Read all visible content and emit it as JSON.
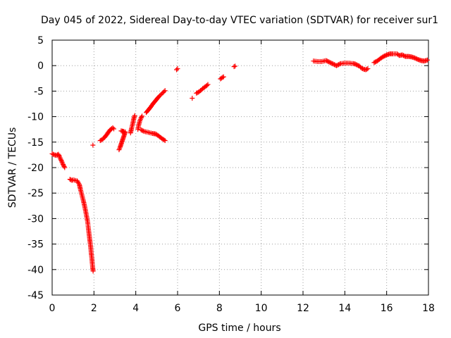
{
  "chart_data": {
    "type": "scatter",
    "title": "Day 045 of 2022, Sidereal Day-to-day VTEC variation (SDTVAR) for receiver sur1",
    "xlabel": "GPS time / hours",
    "ylabel": "SDTVAR / TECUs",
    "xlim": [
      0,
      18
    ],
    "ylim": [
      -45,
      5
    ],
    "x_ticks": [
      0,
      2,
      4,
      6,
      8,
      10,
      12,
      14,
      16,
      18
    ],
    "y_ticks": [
      5,
      0,
      -5,
      -10,
      -15,
      -20,
      -25,
      -30,
      -35,
      -40,
      -45
    ],
    "grid": true,
    "marker": "+",
    "series_color": "#ff0000",
    "segments": [
      {
        "points": [
          [
            0.0,
            -17.3
          ],
          [
            0.1,
            -17.5
          ],
          [
            0.2,
            -17.6
          ],
          [
            0.3,
            -17.4
          ],
          [
            0.35,
            -17.8
          ],
          [
            0.4,
            -18.3
          ],
          [
            0.45,
            -18.7
          ],
          [
            0.5,
            -19.2
          ],
          [
            0.55,
            -19.6
          ],
          [
            0.6,
            -20.0
          ]
        ]
      },
      {
        "points": [
          [
            0.85,
            -22.3
          ],
          [
            0.95,
            -22.5
          ],
          [
            1.0,
            -22.4
          ],
          [
            1.2,
            -22.6
          ],
          [
            1.3,
            -23.3
          ],
          [
            1.35,
            -24.2
          ],
          [
            1.4,
            -25.0
          ],
          [
            1.45,
            -25.8
          ],
          [
            1.5,
            -26.6
          ],
          [
            1.55,
            -27.5
          ],
          [
            1.6,
            -28.5
          ],
          [
            1.65,
            -29.6
          ],
          [
            1.7,
            -30.7
          ],
          [
            1.73,
            -31.8
          ],
          [
            1.76,
            -32.8
          ],
          [
            1.79,
            -33.8
          ],
          [
            1.82,
            -34.8
          ],
          [
            1.85,
            -35.8
          ],
          [
            1.87,
            -36.8
          ],
          [
            1.9,
            -37.8
          ],
          [
            1.92,
            -38.8
          ],
          [
            1.94,
            -39.6
          ],
          [
            1.96,
            -40.3
          ]
        ]
      },
      {
        "points": [
          [
            1.95,
            -15.6
          ]
        ]
      },
      {
        "points": [
          [
            2.3,
            -14.7
          ],
          [
            2.4,
            -14.5
          ],
          [
            2.5,
            -14.1
          ],
          [
            2.6,
            -13.6
          ],
          [
            2.7,
            -13.0
          ],
          [
            2.8,
            -12.5
          ],
          [
            2.9,
            -12.2
          ],
          [
            2.95,
            -12.4
          ]
        ]
      },
      {
        "points": [
          [
            3.2,
            -16.5
          ],
          [
            3.25,
            -16.0
          ],
          [
            3.3,
            -15.4
          ],
          [
            3.35,
            -14.8
          ],
          [
            3.4,
            -14.2
          ],
          [
            3.45,
            -13.6
          ],
          [
            3.5,
            -13.0
          ],
          [
            3.3,
            -12.8
          ],
          [
            3.4,
            -12.9
          ]
        ]
      },
      {
        "points": [
          [
            3.75,
            -13.2
          ],
          [
            3.8,
            -12.3
          ],
          [
            3.85,
            -11.5
          ],
          [
            3.9,
            -10.5
          ],
          [
            3.95,
            -9.8
          ]
        ]
      },
      {
        "points": [
          [
            4.1,
            -12.5
          ],
          [
            4.15,
            -11.5
          ],
          [
            4.2,
            -10.8
          ],
          [
            4.25,
            -10.3
          ],
          [
            4.3,
            -9.9
          ]
        ]
      },
      {
        "points": [
          [
            4.25,
            -12.6
          ],
          [
            4.4,
            -12.9
          ],
          [
            4.6,
            -13.1
          ],
          [
            4.8,
            -13.3
          ],
          [
            4.95,
            -13.4
          ],
          [
            5.1,
            -13.8
          ],
          [
            5.25,
            -14.3
          ],
          [
            5.4,
            -14.7
          ]
        ]
      },
      {
        "points": [
          [
            4.5,
            -9.2
          ],
          [
            4.6,
            -8.7
          ],
          [
            4.7,
            -8.2
          ],
          [
            4.8,
            -7.6
          ],
          [
            4.9,
            -7.1
          ],
          [
            5.0,
            -6.6
          ],
          [
            5.1,
            -6.1
          ],
          [
            5.2,
            -5.7
          ],
          [
            5.3,
            -5.3
          ],
          [
            5.4,
            -4.9
          ]
        ]
      },
      {
        "points": [
          [
            5.95,
            -0.8
          ],
          [
            6.0,
            -0.6
          ]
        ]
      },
      {
        "points": [
          [
            6.7,
            -6.4
          ]
        ]
      },
      {
        "points": [
          [
            6.9,
            -5.4
          ],
          [
            7.0,
            -5.2
          ],
          [
            7.1,
            -4.9
          ],
          [
            7.2,
            -4.5
          ],
          [
            7.3,
            -4.2
          ],
          [
            7.4,
            -3.9
          ],
          [
            7.45,
            -3.7
          ]
        ]
      },
      {
        "points": [
          [
            8.05,
            -2.6
          ],
          [
            8.15,
            -2.3
          ],
          [
            8.2,
            -2.2
          ]
        ]
      },
      {
        "points": [
          [
            8.7,
            -0.2
          ],
          [
            8.75,
            -0.1
          ]
        ]
      },
      {
        "points": [
          [
            12.5,
            0.9
          ],
          [
            12.7,
            0.8
          ],
          [
            12.9,
            0.8
          ],
          [
            13.1,
            1.0
          ],
          [
            13.2,
            0.8
          ],
          [
            13.3,
            0.6
          ],
          [
            13.4,
            0.4
          ],
          [
            13.5,
            0.2
          ],
          [
            13.6,
            0.0
          ],
          [
            13.7,
            0.2
          ],
          [
            13.8,
            0.4
          ],
          [
            14.0,
            0.5
          ],
          [
            14.2,
            0.5
          ],
          [
            14.4,
            0.4
          ],
          [
            14.5,
            0.3
          ],
          [
            14.6,
            0.1
          ],
          [
            14.7,
            -0.1
          ],
          [
            14.8,
            -0.5
          ],
          [
            14.9,
            -0.7
          ],
          [
            15.0,
            -0.8
          ],
          [
            15.1,
            -0.6
          ]
        ]
      },
      {
        "points": [
          [
            15.4,
            0.6
          ],
          [
            15.55,
            0.9
          ],
          [
            15.7,
            1.4
          ],
          [
            15.85,
            1.8
          ],
          [
            16.0,
            2.1
          ],
          [
            16.15,
            2.3
          ],
          [
            16.3,
            2.3
          ],
          [
            16.5,
            2.3
          ],
          [
            16.6,
            2.0
          ],
          [
            16.75,
            2.1
          ],
          [
            16.9,
            1.8
          ],
          [
            17.05,
            1.8
          ],
          [
            17.2,
            1.7
          ],
          [
            17.35,
            1.5
          ],
          [
            17.5,
            1.2
          ],
          [
            17.65,
            1.0
          ],
          [
            17.8,
            0.9
          ],
          [
            17.95,
            1.1
          ]
        ]
      }
    ]
  }
}
